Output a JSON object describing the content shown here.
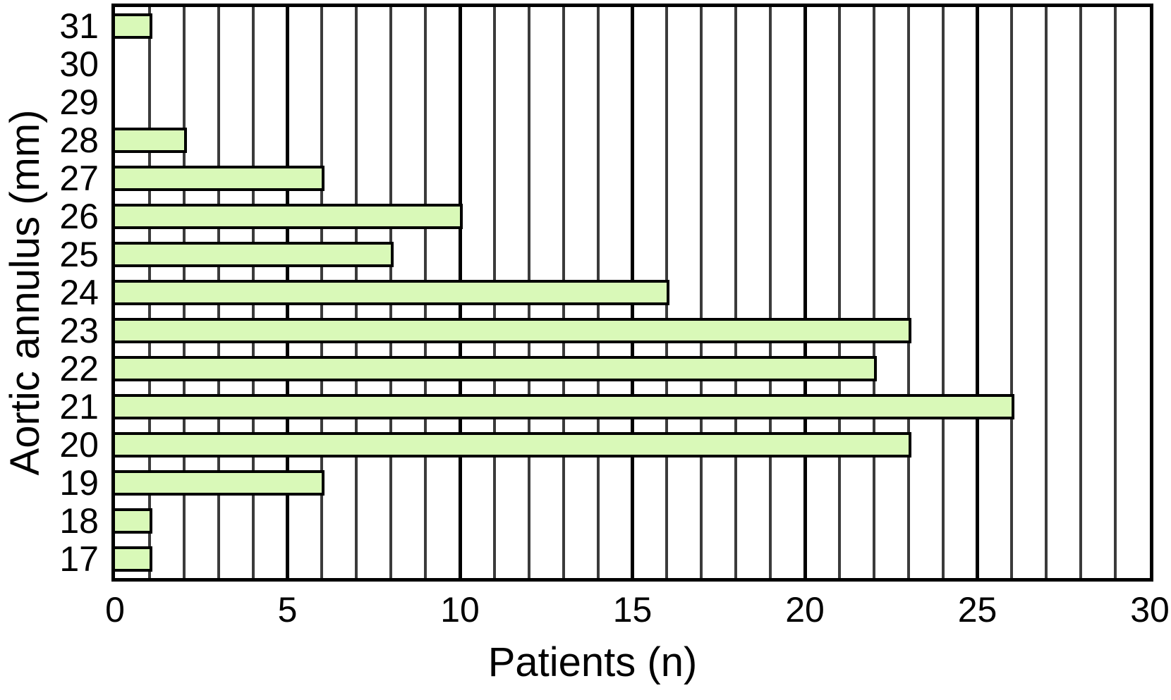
{
  "chart_data": {
    "type": "bar",
    "orientation": "horizontal",
    "xlabel": "Patients (n)",
    "ylabel": "Aortic annulus (mm)",
    "categories": [
      "31",
      "30",
      "29",
      "28",
      "27",
      "26",
      "25",
      "24",
      "23",
      "22",
      "21",
      "20",
      "19",
      "18",
      "17"
    ],
    "values": [
      1,
      0,
      0,
      2,
      6,
      10,
      8,
      16,
      23,
      22,
      26,
      23,
      6,
      1,
      1
    ],
    "xlim": [
      0,
      30
    ],
    "xticks": [
      0,
      5,
      10,
      15,
      20,
      25,
      30
    ],
    "minor_grid_step": 1,
    "major_grid_step": 5,
    "grid": "vertical-full-height",
    "legend": "none",
    "bar_fill_color": "#d9f9b8",
    "bar_border_color": "#000000",
    "minor_grid_color": "#3b3b3b",
    "major_grid_color": "#000000",
    "plot_border_color": "#000000",
    "background_color": "#ffffff"
  }
}
